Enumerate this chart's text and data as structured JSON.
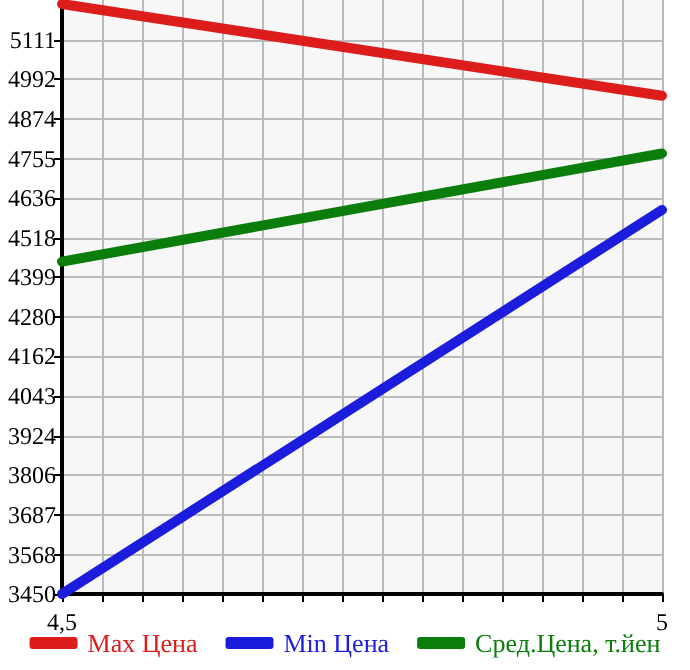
{
  "chart_data": {
    "type": "line",
    "x": [
      4.5,
      5
    ],
    "series": [
      {
        "name": "Max Цена",
        "color": "#dd1c1c",
        "values": [
          5218,
          4943
        ]
      },
      {
        "name": "Min Цена",
        "color": "#1c1cdd",
        "values": [
          3450,
          4601
        ]
      },
      {
        "name": "Сред.Цена, т.йен",
        "color": "#0a7d0a",
        "values": [
          4446,
          4770
        ]
      }
    ],
    "xlim": [
      4.5,
      5
    ],
    "xticks": [
      {
        "value": 4.5,
        "label": "4,5"
      },
      {
        "value": 4.5333,
        "label": null
      },
      {
        "value": 4.5667,
        "label": null
      },
      {
        "value": 4.6,
        "label": null
      },
      {
        "value": 4.6333,
        "label": null
      },
      {
        "value": 4.6667,
        "label": null
      },
      {
        "value": 4.7,
        "label": null
      },
      {
        "value": 4.7333,
        "label": null
      },
      {
        "value": 4.7667,
        "label": null
      },
      {
        "value": 4.8,
        "label": null
      },
      {
        "value": 4.8333,
        "label": null
      },
      {
        "value": 4.8667,
        "label": null
      },
      {
        "value": 4.9,
        "label": null
      },
      {
        "value": 4.9333,
        "label": null
      },
      {
        "value": 4.9667,
        "label": null
      },
      5
    ],
    "ylim": [
      3450,
      5230
    ],
    "yticks": [
      3450,
      3568,
      3687,
      3806,
      3924,
      4043,
      4162,
      4280,
      4399,
      4518,
      4636,
      4755,
      4874,
      4992,
      5111
    ],
    "grid": true,
    "legend": "bottom",
    "marker": "none",
    "line_style": "solid"
  }
}
